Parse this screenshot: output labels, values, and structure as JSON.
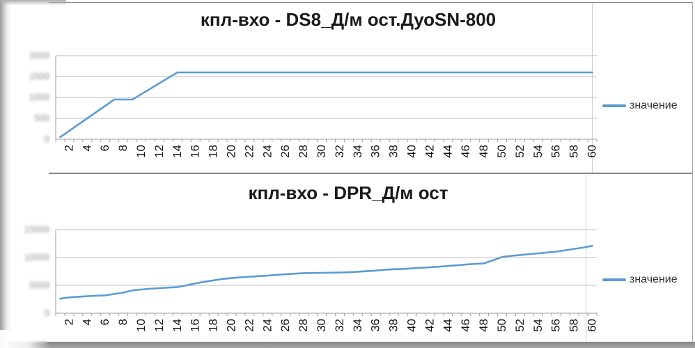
{
  "chart_data": [
    {
      "type": "line",
      "title": "кпл-вхо - DS8_Д/м ост.ДуоSN-800",
      "legend_label": "значение",
      "legend_position": "right",
      "line_color": "#5b9bd5",
      "grid": true,
      "x_range": [
        1,
        60
      ],
      "xticks": [
        2,
        4,
        6,
        8,
        10,
        12,
        14,
        16,
        18,
        20,
        22,
        24,
        26,
        28,
        30,
        32,
        34,
        36,
        38,
        40,
        42,
        44,
        46,
        48,
        50,
        52,
        54,
        56,
        58,
        60
      ],
      "ylim": [
        0,
        2000
      ],
      "yticks": [
        0,
        500,
        1000,
        1500,
        2000
      ],
      "ytick_labels_obscured": true,
      "values": [
        50,
        200,
        350,
        500,
        650,
        800,
        950,
        950,
        950,
        1080,
        1210,
        1340,
        1470,
        1600,
        1600,
        1600,
        1600,
        1600,
        1600,
        1600,
        1600,
        1600,
        1600,
        1600,
        1600,
        1600,
        1600,
        1600,
        1600,
        1600,
        1600,
        1600,
        1600,
        1600,
        1600,
        1600,
        1600,
        1600,
        1600,
        1600,
        1600,
        1600,
        1600,
        1600,
        1600,
        1600,
        1600,
        1600,
        1600,
        1600,
        1600,
        1600,
        1600,
        1600,
        1600,
        1600,
        1600,
        1600,
        1600,
        1600
      ]
    },
    {
      "type": "line",
      "title": "кпл-вхо - DPR_Д/м ост",
      "legend_label": "значение",
      "legend_position": "right",
      "line_color": "#5b9bd5",
      "grid": true,
      "x_range": [
        1,
        60
      ],
      "xticks": [
        2,
        4,
        6,
        8,
        10,
        12,
        14,
        16,
        18,
        20,
        22,
        24,
        26,
        28,
        30,
        32,
        34,
        36,
        38,
        40,
        42,
        44,
        46,
        48,
        50,
        52,
        54,
        56,
        58,
        60
      ],
      "ylim": [
        0,
        15000
      ],
      "yticks": [
        0,
        5000,
        10000,
        15000
      ],
      "ytick_labels_obscured": true,
      "values": [
        2600,
        2850,
        2950,
        3050,
        3150,
        3200,
        3450,
        3700,
        4100,
        4250,
        4400,
        4500,
        4600,
        4700,
        5000,
        5350,
        5650,
        5900,
        6150,
        6300,
        6450,
        6550,
        6650,
        6750,
        6900,
        7000,
        7100,
        7200,
        7220,
        7250,
        7270,
        7300,
        7350,
        7450,
        7550,
        7650,
        7800,
        7900,
        7950,
        8050,
        8150,
        8250,
        8350,
        8500,
        8600,
        8750,
        8850,
        8950,
        9500,
        10100,
        10300,
        10450,
        10600,
        10750,
        10900,
        11050,
        11300,
        11550,
        11800,
        12100
      ]
    }
  ]
}
